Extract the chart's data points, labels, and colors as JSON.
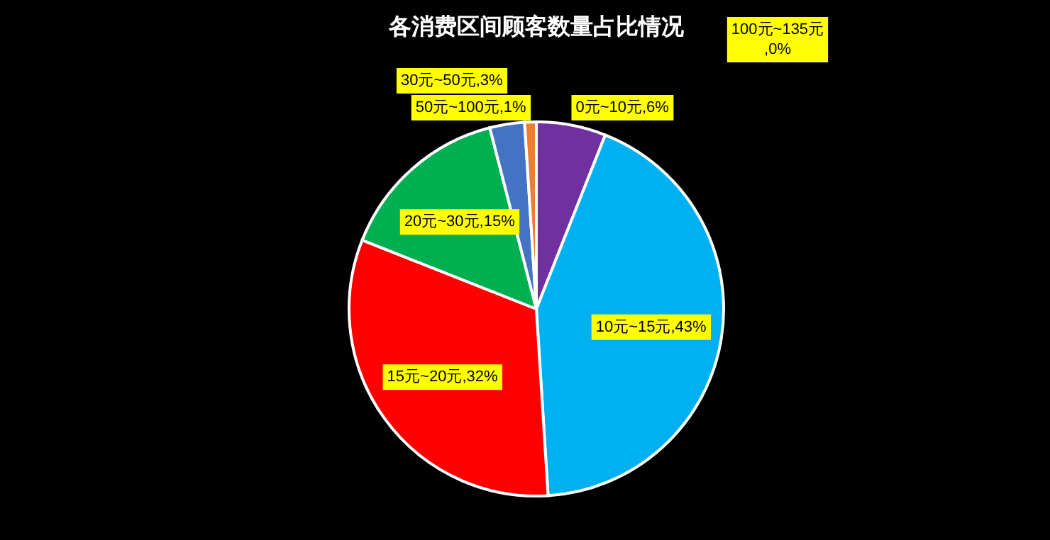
{
  "chart_data": {
    "type": "pie",
    "title": "各消费区间顾客数量占比情况",
    "categories": [
      "0元~10元",
      "10元~15元",
      "15元~20元",
      "20元~30元",
      "30元~50元",
      "50元~100元",
      "100元~135元"
    ],
    "values": [
      6,
      43,
      32,
      15,
      3,
      1,
      0
    ],
    "colors": [
      "#7030a0",
      "#00b0f0",
      "#ff0000",
      "#00b050",
      "#4472c4",
      "#ed7d31",
      "#a5a5a5"
    ],
    "value_labels": [
      ",6%",
      ",43%",
      ",32%",
      ",15%",
      ",3%",
      ",1%",
      ",0%"
    ]
  }
}
